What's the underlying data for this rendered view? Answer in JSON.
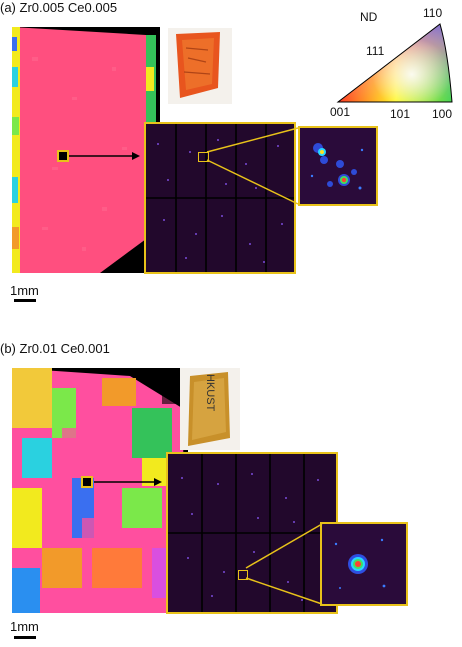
{
  "figure": {
    "panel_a": {
      "label": "(a) Zr0.005 Ce0.005",
      "scale_label": "1mm"
    },
    "panel_b": {
      "label": "(b) Zr0.01 Ce0.001",
      "scale_label": "1mm",
      "photo_text": "HKUST"
    },
    "ipf_legend": {
      "title": "ND",
      "corner_top": "110",
      "corner_mid": "111",
      "corner_left": "001",
      "corner_bottom_mid": "101",
      "corner_right": "100"
    }
  },
  "colors": {
    "frame_yellow": "#e8c21a",
    "grain_pink": "#ff4f7f",
    "laue_background": "#22082c"
  }
}
